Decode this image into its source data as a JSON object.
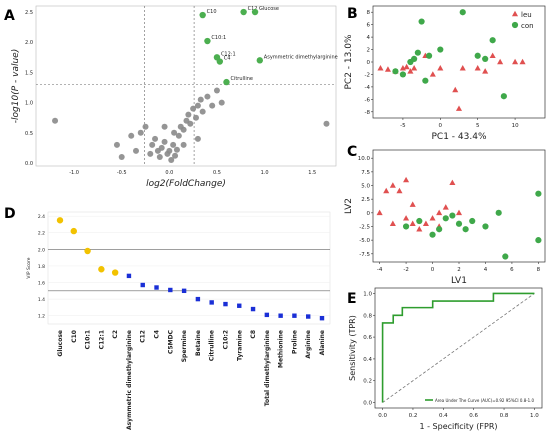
{
  "chart_data": [
    {
      "panel": "A",
      "type": "scatter",
      "xlabel": "log2(FoldChange)",
      "ylabel": "-log10(P - value)",
      "xlim": [
        -1.4,
        1.75
      ],
      "ylim": [
        -0.05,
        2.6
      ],
      "xticks": [
        -1.0,
        -0.5,
        0.0,
        0.5,
        1.0,
        1.5
      ],
      "yticks": [
        0.0,
        0.5,
        1.0,
        1.5,
        2.0,
        2.5
      ],
      "threshold_lines": {
        "x": [
          -0.26,
          0.26
        ],
        "y": [
          1.3
        ]
      },
      "colors": {
        "significant": "#4caf50",
        "other": "#8a8a8a"
      },
      "significant": [
        {
          "label": "C10",
          "x": 0.35,
          "y": 2.45
        },
        {
          "label": "C12",
          "x": 0.78,
          "y": 2.5
        },
        {
          "label": "Glucose",
          "x": 0.9,
          "y": 2.5
        },
        {
          "label": "C10:1",
          "x": 0.4,
          "y": 2.02
        },
        {
          "label": "C12:1",
          "x": 0.5,
          "y": 1.75
        },
        {
          "label": "C4",
          "x": 0.53,
          "y": 1.68
        },
        {
          "label": "Asymmetric dimethylarginine",
          "x": 0.95,
          "y": 1.7
        },
        {
          "label": "Citrulline",
          "x": 0.6,
          "y": 1.34
        }
      ],
      "others": [
        [
          -1.2,
          0.7
        ],
        [
          -0.55,
          0.3
        ],
        [
          -0.5,
          0.1
        ],
        [
          -0.4,
          0.45
        ],
        [
          -0.3,
          0.5
        ],
        [
          -0.25,
          0.6
        ],
        [
          -0.2,
          0.15
        ],
        [
          -0.18,
          0.3
        ],
        [
          -0.15,
          0.4
        ],
        [
          -0.12,
          0.2
        ],
        [
          -0.1,
          0.1
        ],
        [
          -0.08,
          0.25
        ],
        [
          -0.05,
          0.35
        ],
        [
          -0.02,
          0.15
        ],
        [
          0.0,
          0.2
        ],
        [
          0.02,
          0.05
        ],
        [
          0.04,
          0.3
        ],
        [
          0.06,
          0.12
        ],
        [
          0.08,
          0.22
        ],
        [
          0.1,
          0.45
        ],
        [
          0.12,
          0.6
        ],
        [
          0.15,
          0.55
        ],
        [
          0.18,
          0.7
        ],
        [
          0.2,
          0.8
        ],
        [
          0.22,
          0.65
        ],
        [
          0.25,
          0.9
        ],
        [
          0.28,
          0.75
        ],
        [
          0.3,
          0.95
        ],
        [
          0.33,
          1.05
        ],
        [
          0.35,
          0.85
        ],
        [
          0.4,
          1.1
        ],
        [
          0.45,
          0.95
        ],
        [
          0.5,
          1.2
        ],
        [
          0.55,
          1.0
        ],
        [
          1.65,
          0.65
        ],
        [
          -0.35,
          0.2
        ],
        [
          0.05,
          0.5
        ],
        [
          0.15,
          0.3
        ],
        [
          -0.05,
          0.6
        ],
        [
          0.3,
          0.4
        ]
      ]
    },
    {
      "panel": "B",
      "type": "scatter",
      "xlabel": "PC1 - 43.4%",
      "ylabel": "PC2 - 13.0%",
      "xlim": [
        -9,
        14
      ],
      "ylim": [
        -9,
        9
      ],
      "xticks": [
        -5,
        0,
        5,
        10
      ],
      "yticks": [
        -8,
        -6,
        -4,
        -2,
        0,
        2,
        4,
        6,
        8
      ],
      "legend_position": "top-right",
      "series": [
        {
          "name": "leu",
          "marker": "triangle",
          "color": "#e05050",
          "points": [
            [
              -8,
              -1
            ],
            [
              -7,
              -1.2
            ],
            [
              -6,
              -1.5
            ],
            [
              -5,
              -1
            ],
            [
              -4.5,
              -0.8
            ],
            [
              -4,
              -1.5
            ],
            [
              -3.5,
              -1
            ],
            [
              -2,
              1
            ],
            [
              -1,
              -2
            ],
            [
              0,
              -1
            ],
            [
              2,
              -4.5
            ],
            [
              2.5,
              -7.5
            ],
            [
              3,
              -1
            ],
            [
              5,
              -1
            ],
            [
              6,
              -1.5
            ],
            [
              7,
              1
            ],
            [
              8,
              0
            ],
            [
              10,
              0
            ],
            [
              11,
              0
            ]
          ]
        },
        {
          "name": "con",
          "marker": "circle",
          "color": "#3fa84a",
          "points": [
            [
              -6,
              -1.5
            ],
            [
              -5,
              -2
            ],
            [
              -4,
              0
            ],
            [
              -3,
              1.5
            ],
            [
              -2.5,
              6.5
            ],
            [
              -2,
              -3
            ],
            [
              -1.5,
              1
            ],
            [
              0,
              2
            ],
            [
              -3.5,
              0.5
            ],
            [
              3,
              8
            ],
            [
              5,
              1
            ],
            [
              6,
              0.5
            ],
            [
              7,
              3.5
            ],
            [
              8.5,
              -5.5
            ]
          ]
        }
      ]
    },
    {
      "panel": "C",
      "type": "scatter",
      "xlabel": "LV1",
      "ylabel": "LV2",
      "xlim": [
        -4.5,
        8.5
      ],
      "ylim": [
        -9,
        11.5
      ],
      "xticks": [
        -4,
        -2,
        0,
        2,
        4,
        6,
        8
      ],
      "yticks": [
        -7.5,
        -5.0,
        -2.5,
        0.0,
        2.5,
        5.0,
        7.5,
        10.0
      ],
      "series": [
        {
          "name": "leu",
          "marker": "triangle",
          "color": "#e05050",
          "points": [
            [
              -4,
              0
            ],
            [
              -3.5,
              4
            ],
            [
              -3,
              5
            ],
            [
              -2.5,
              4
            ],
            [
              -2,
              -1
            ],
            [
              -1.5,
              -2
            ],
            [
              -1,
              -3
            ],
            [
              -0.5,
              -2
            ],
            [
              0,
              -1
            ],
            [
              0.5,
              0
            ],
            [
              1,
              1
            ],
            [
              1.5,
              5.5
            ],
            [
              2,
              0
            ],
            [
              -2,
              6
            ],
            [
              -3,
              -2
            ],
            [
              -1.5,
              1.5
            ],
            [
              0.5,
              -2.5
            ]
          ]
        },
        {
          "name": "con",
          "marker": "circle",
          "color": "#3fa84a",
          "points": [
            [
              -2,
              -2.5
            ],
            [
              -1,
              -1.5
            ],
            [
              0,
              -4
            ],
            [
              0.5,
              -3
            ],
            [
              1,
              -1
            ],
            [
              1.5,
              -0.5
            ],
            [
              2,
              -2
            ],
            [
              2.5,
              -3
            ],
            [
              3,
              -1.5
            ],
            [
              4,
              -2.5
            ],
            [
              5,
              0
            ],
            [
              5.5,
              -8
            ],
            [
              8,
              -5
            ],
            [
              8,
              3.5
            ]
          ]
        }
      ]
    },
    {
      "panel": "D",
      "type": "scatter",
      "ylabel": "VIP Score",
      "ylim": [
        1.1,
        2.45
      ],
      "yticks": [
        1.2,
        1.4,
        1.6,
        1.8,
        2.0,
        2.2,
        2.4
      ],
      "hlines": [
        2.0,
        1.5
      ],
      "categories": [
        "Glucose",
        "C10",
        "C10:1",
        "C12:1",
        "C2",
        "Asymmetric dimethylarginine",
        "C12",
        "C4",
        "C5MDC",
        "Spermine",
        "Betaine",
        "Citrulline",
        "C10:2",
        "Tyramine",
        "C8",
        "Total dimethylarginine",
        "Methionine",
        "Proline",
        "Arginine",
        "Alanine"
      ],
      "values": [
        2.35,
        2.22,
        1.98,
        1.76,
        1.72,
        1.68,
        1.57,
        1.54,
        1.51,
        1.5,
        1.4,
        1.36,
        1.34,
        1.32,
        1.28,
        1.21,
        1.2,
        1.2,
        1.19,
        1.17
      ],
      "colors": [
        "#f2c200",
        "#f2c200",
        "#f2c200",
        "#f2c200",
        "#f2c200",
        "#1a2fd6",
        "#1a2fd6",
        "#1a2fd6",
        "#1a2fd6",
        "#1a2fd6",
        "#1a2fd6",
        "#1a2fd6",
        "#1a2fd6",
        "#1a2fd6",
        "#1a2fd6",
        "#1a2fd6",
        "#1a2fd6",
        "#1a2fd6",
        "#1a2fd6",
        "#1a2fd6"
      ]
    },
    {
      "panel": "E",
      "type": "line",
      "xlabel": "1 - Specificity (FPR)",
      "ylabel": "Sensitivity (TPR)",
      "xlim": [
        -0.05,
        1.05
      ],
      "ylim": [
        -0.05,
        1.05
      ],
      "xticks": [
        0.0,
        0.2,
        0.4,
        0.6,
        0.8,
        1.0
      ],
      "yticks": [
        0.0,
        0.2,
        0.4,
        0.6,
        0.8,
        1.0
      ],
      "roc_color": "#2e9d2e",
      "legend_label": "Area Under The Curve (AUC)=0.92 95%CI 0.8-1.0",
      "roc": [
        [
          0,
          0
        ],
        [
          0,
          0.73
        ],
        [
          0.07,
          0.73
        ],
        [
          0.07,
          0.8
        ],
        [
          0.13,
          0.8
        ],
        [
          0.13,
          0.87
        ],
        [
          0.33,
          0.87
        ],
        [
          0.33,
          0.93
        ],
        [
          0.73,
          0.93
        ],
        [
          0.73,
          1.0
        ],
        [
          1.0,
          1.0
        ]
      ]
    }
  ],
  "panel_letters": [
    "A",
    "B",
    "C",
    "D",
    "E"
  ]
}
